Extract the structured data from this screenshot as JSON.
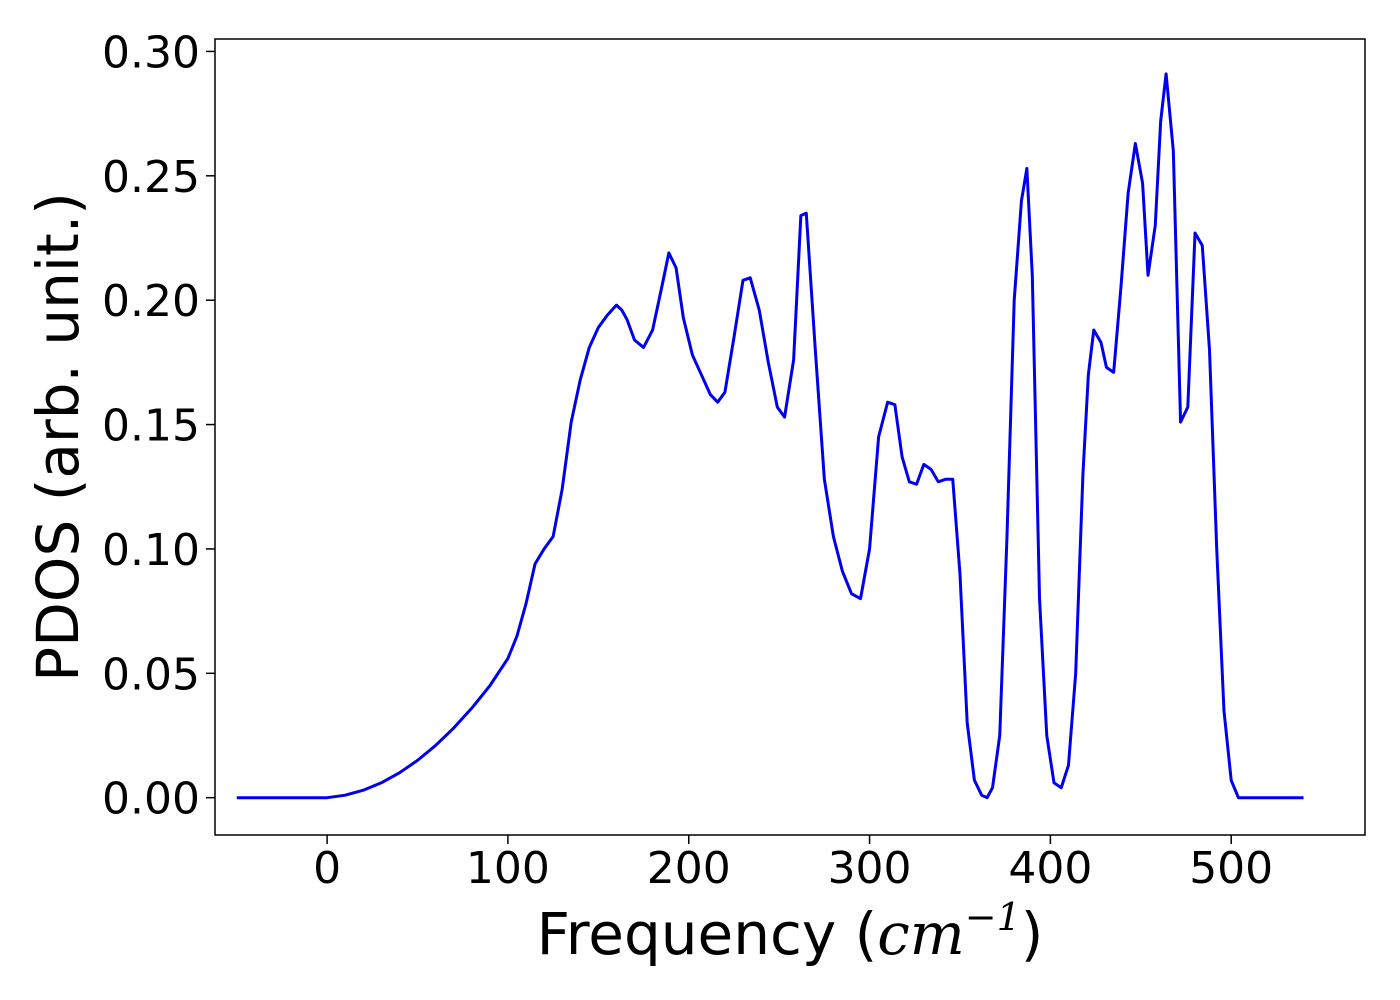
{
  "chart_data": {
    "type": "line",
    "title": "",
    "xlabel_prefix": "Frequency (",
    "xlabel_math": "cm",
    "xlabel_sup": "−1",
    "xlabel_suffix": ")",
    "ylabel": "PDOS (arb. unit.)",
    "xlim": [
      -62,
      574
    ],
    "ylim": [
      -0.015,
      0.305
    ],
    "xticks": [
      0,
      100,
      200,
      300,
      400,
      500
    ],
    "xtick_labels": [
      "0",
      "100",
      "200",
      "300",
      "400",
      "500"
    ],
    "yticks": [
      0.0,
      0.05,
      0.1,
      0.15,
      0.2,
      0.25,
      0.3
    ],
    "ytick_labels": [
      "0.00",
      "0.05",
      "0.10",
      "0.15",
      "0.20",
      "0.25",
      "0.30"
    ],
    "grid": false,
    "line_color": "#0000ee",
    "series": [
      {
        "x": [
          -50,
          0,
          10,
          20,
          30,
          40,
          50,
          60,
          70,
          80,
          90,
          100,
          105,
          110,
          115,
          120,
          125,
          130,
          135,
          140,
          145,
          150,
          155,
          160,
          163,
          166,
          170,
          175,
          180,
          185,
          189,
          193,
          197,
          202,
          207,
          212,
          216,
          220,
          225,
          230,
          234,
          239,
          244,
          249,
          253,
          258,
          262,
          265,
          270,
          275,
          280,
          285,
          290,
          295,
          300,
          305,
          310,
          314,
          318,
          322,
          326,
          330,
          334,
          338,
          342,
          346,
          350,
          354,
          358,
          362,
          365,
          368,
          372,
          376,
          380,
          384,
          387,
          390,
          394,
          398,
          402,
          406,
          410,
          414,
          418,
          421,
          424,
          428,
          431,
          435,
          439,
          443,
          447,
          451,
          454,
          458,
          461,
          464,
          468,
          472,
          476,
          480,
          484,
          488,
          492,
          496,
          500,
          504,
          510,
          540
        ],
        "y": [
          0.0,
          0.0,
          0.001,
          0.003,
          0.006,
          0.01,
          0.015,
          0.021,
          0.028,
          0.036,
          0.045,
          0.056,
          0.065,
          0.078,
          0.094,
          0.1,
          0.105,
          0.124,
          0.151,
          0.168,
          0.181,
          0.189,
          0.194,
          0.198,
          0.196,
          0.192,
          0.184,
          0.181,
          0.188,
          0.205,
          0.219,
          0.213,
          0.193,
          0.178,
          0.17,
          0.162,
          0.159,
          0.163,
          0.185,
          0.208,
          0.209,
          0.196,
          0.175,
          0.157,
          0.153,
          0.176,
          0.234,
          0.235,
          0.18,
          0.128,
          0.105,
          0.091,
          0.082,
          0.08,
          0.1,
          0.145,
          0.159,
          0.158,
          0.137,
          0.127,
          0.126,
          0.134,
          0.132,
          0.127,
          0.128,
          0.128,
          0.09,
          0.03,
          0.007,
          0.001,
          0.0,
          0.004,
          0.025,
          0.105,
          0.2,
          0.24,
          0.253,
          0.21,
          0.08,
          0.025,
          0.006,
          0.004,
          0.013,
          0.05,
          0.13,
          0.17,
          0.188,
          0.183,
          0.173,
          0.171,
          0.205,
          0.243,
          0.263,
          0.247,
          0.21,
          0.23,
          0.272,
          0.291,
          0.26,
          0.151,
          0.157,
          0.227,
          0.222,
          0.18,
          0.1,
          0.035,
          0.007,
          0.0,
          0.0,
          0.0
        ]
      }
    ]
  }
}
